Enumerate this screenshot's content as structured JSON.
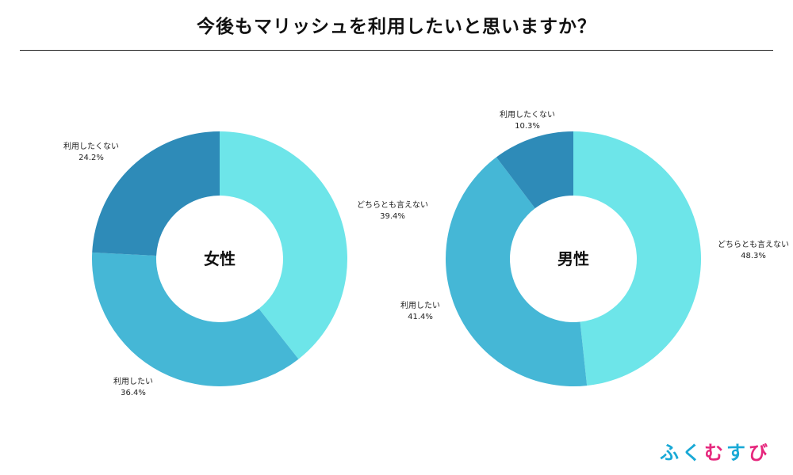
{
  "title": "今後もマリッシュを利用したいと思いますか？",
  "logo": {
    "chars": [
      "ふ",
      "く",
      "む",
      "す",
      "び"
    ],
    "colors": [
      "#19a9d6",
      "#19a9d6",
      "#e6277d",
      "#19a9d6",
      "#e6277d"
    ]
  },
  "chart_data": [
    {
      "type": "pie",
      "subtype": "donut",
      "center_label": "女性",
      "slices": [
        {
          "label": "どちらとも言えない",
          "value": 39.4,
          "value_text": "39.4%",
          "color": "#6de5e9"
        },
        {
          "label": "利用したい",
          "value": 36.4,
          "value_text": "36.4%",
          "color": "#45b7d6"
        },
        {
          "label": "利用したくない",
          "value": 24.2,
          "value_text": "24.2%",
          "color": "#2e8bb8"
        }
      ]
    },
    {
      "type": "pie",
      "subtype": "donut",
      "center_label": "男性",
      "slices": [
        {
          "label": "どちらとも言えない",
          "value": 48.3,
          "value_text": "48.3%",
          "color": "#6de5e9"
        },
        {
          "label": "利用したい",
          "value": 41.4,
          "value_text": "41.4%",
          "color": "#45b7d6"
        },
        {
          "label": "利用したくない",
          "value": 10.3,
          "value_text": "10.3%",
          "color": "#2e8bb8"
        }
      ]
    }
  ]
}
